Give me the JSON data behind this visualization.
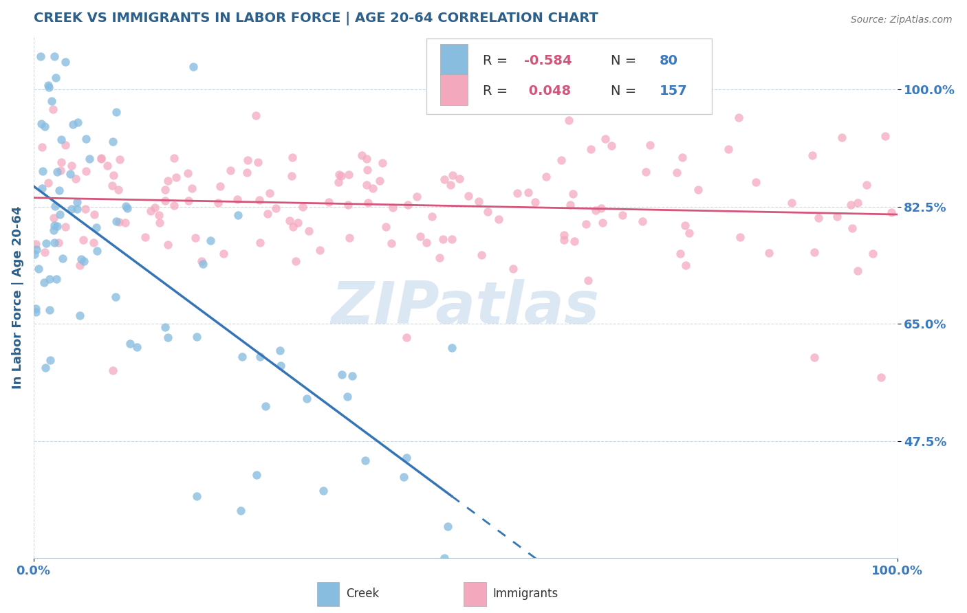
{
  "title": "CREEK VS IMMIGRANTS IN LABOR FORCE | AGE 20-64 CORRELATION CHART",
  "source": "Source: ZipAtlas.com",
  "ylabel": "In Labor Force | Age 20-64",
  "xlim": [
    0.0,
    1.0
  ],
  "ylim": [
    0.3,
    1.08
  ],
  "yticks": [
    0.475,
    0.65,
    0.825,
    1.0
  ],
  "ytick_labels": [
    "47.5%",
    "65.0%",
    "82.5%",
    "100.0%"
  ],
  "xtick_labels": [
    "0.0%",
    "100.0%"
  ],
  "xticks": [
    0.0,
    1.0
  ],
  "creek_R": -0.584,
  "creek_N": 80,
  "immigrants_R": 0.048,
  "immigrants_N": 157,
  "creek_color": "#88bde0",
  "immigrants_color": "#f4a8be",
  "creek_line_color": "#3575b5",
  "immigrants_line_color": "#d4547a",
  "background_color": "#ffffff",
  "watermark_text": "ZIPatlas",
  "title_color": "#2c5f8a",
  "axis_label_color": "#2c5f8a",
  "tick_label_color": "#3a7abf",
  "grid_color": "#c8d8e8",
  "legend_r_color": "#d4547a",
  "legend_n_color": "#3a7abf"
}
